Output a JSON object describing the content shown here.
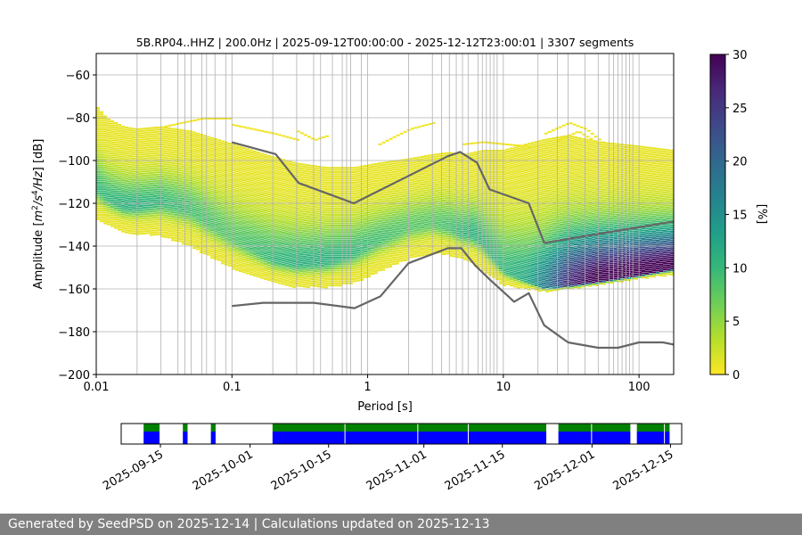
{
  "chart_data": [
    {
      "type": "heatmap",
      "title": "5B.RP04..HHZ | 200.0Hz | 2025-09-12T00:00:00 - 2025-12-12T23:00:01 | 3307 segments",
      "xlabel": "Period [s]",
      "ylabel_parts": [
        "Amplitude [",
        "m",
        "2",
        "/s",
        "4",
        "/Hz",
        "] [dB]"
      ],
      "x_scale": "log",
      "xlim": [
        0.01,
        180
      ],
      "ylim": [
        -200,
        -50
      ],
      "x_ticks": [
        {
          "v": 0.01,
          "label": "0.01"
        },
        {
          "v": 0.1,
          "label": "0.1"
        },
        {
          "v": 1,
          "label": "1"
        },
        {
          "v": 10,
          "label": "10"
        },
        {
          "v": 100,
          "label": "100"
        }
      ],
      "y_ticks": [
        {
          "v": -60,
          "label": "−60"
        },
        {
          "v": -80,
          "label": "−80"
        },
        {
          "v": -100,
          "label": "−100"
        },
        {
          "v": -120,
          "label": "−120"
        },
        {
          "v": -140,
          "label": "−140"
        },
        {
          "v": -160,
          "label": "−160"
        },
        {
          "v": -180,
          "label": "−180"
        },
        {
          "v": -200,
          "label": "−200"
        }
      ],
      "grid_periods": [
        0.02,
        0.03,
        0.04,
        0.045,
        0.05,
        0.06,
        0.065,
        0.075,
        0.09,
        0.1,
        0.2,
        0.3,
        0.4,
        0.45,
        0.55,
        0.65,
        0.7,
        0.75,
        0.9,
        1,
        2,
        3,
        3.5,
        4,
        4.5,
        5,
        5.5,
        6.5,
        7,
        7.5,
        8,
        8.5,
        9,
        10,
        18,
        25,
        30,
        40,
        50,
        60,
        65,
        70,
        75,
        80,
        85,
        90,
        100
      ],
      "colorbar": {
        "label": "[%]",
        "min": 0,
        "max": 30,
        "ticks": [
          {
            "v": 0,
            "label": "0"
          },
          {
            "v": 5,
            "label": "5"
          },
          {
            "v": 10,
            "label": "10"
          },
          {
            "v": 15,
            "label": "15"
          },
          {
            "v": 20,
            "label": "20"
          },
          {
            "v": 25,
            "label": "25"
          },
          {
            "v": 30,
            "label": "30"
          }
        ]
      },
      "density": {
        "periods": [
          0.01,
          0.012,
          0.016,
          0.02,
          0.03,
          0.05,
          0.1,
          0.2,
          0.3,
          0.5,
          0.8,
          1.2,
          2,
          3,
          4,
          5,
          6,
          7,
          10,
          15,
          20,
          30,
          50,
          100,
          180
        ],
        "mode_db": [
          -112,
          -117,
          -121,
          -121,
          -119,
          -123,
          -136,
          -146,
          -148,
          -147,
          -143,
          -137,
          -131,
          -129,
          -131,
          -134,
          -134,
          -138,
          -151,
          -156,
          -159,
          -158,
          -156,
          -153,
          -150
        ],
        "mode_pct": [
          9,
          9,
          10,
          10,
          9,
          8,
          7,
          9,
          10,
          10,
          9,
          8,
          7,
          7,
          8,
          9,
          10,
          9,
          9,
          11,
          16,
          25,
          30,
          30,
          30
        ],
        "upper_db": [
          -74,
          -80,
          -84,
          -85,
          -84,
          -86,
          -92,
          -98,
          -101,
          -103,
          -103,
          -101,
          -99,
          -97,
          -96,
          -97,
          -96,
          -95,
          -95,
          -92,
          -90,
          -88,
          -91,
          -93,
          -95
        ],
        "lower_db": [
          -127,
          -130,
          -133,
          -134,
          -135,
          -140,
          -150,
          -157,
          -159,
          -159,
          -157,
          -152,
          -146,
          -143,
          -144,
          -146,
          -148,
          -151,
          -158,
          -160,
          -161,
          -160,
          -158,
          -155,
          -153
        ],
        "outliers": [
          {
            "periods": [
              0.03,
              0.05,
              0.06,
              0.1
            ],
            "db": [
              -84,
              -81,
              -80,
              -80
            ]
          },
          {
            "periods": [
              0.1,
              0.2,
              0.3
            ],
            "db": [
              -83,
              -87,
              -90
            ]
          },
          {
            "periods": [
              0.3,
              0.4,
              0.5
            ],
            "db": [
              -86,
              -90,
              -88
            ]
          },
          {
            "periods": [
              1.2,
              2,
              3
            ],
            "db": [
              -92,
              -85,
              -82
            ]
          },
          {
            "periods": [
              5,
              7,
              10,
              15
            ],
            "db": [
              -92,
              -91,
              -92,
              -93
            ]
          },
          {
            "periods": [
              20,
              30,
              40,
              60
            ],
            "db": [
              -87,
              -82,
              -85,
              -94
            ]
          },
          {
            "periods": [
              25,
              35,
              50
            ],
            "db": [
              -90,
              -86,
              -92
            ]
          }
        ]
      },
      "series": [
        {
          "periods": [
            0.1,
            0.21,
            0.31,
            0.79,
            3.9,
            4.8,
            6.4,
            7.9,
            15.4,
            20,
            180
          ],
          "db": [
            -91.5,
            -97,
            -110.5,
            -120,
            -98,
            -96,
            -101,
            -113.5,
            -120,
            -138.5,
            -128.5
          ]
        },
        {
          "periods": [
            0.1,
            0.17,
            0.4,
            0.8,
            1.24,
            2,
            3.9,
            4.9,
            6.2,
            7.9,
            10.9,
            12,
            15.4,
            20,
            30,
            50,
            70,
            100,
            150,
            180
          ],
          "db": [
            -168,
            -166.5,
            -166.5,
            -169,
            -163.5,
            -148,
            -141,
            -141,
            -149,
            -155.5,
            -163.5,
            -166,
            -162,
            -177,
            -185,
            -187.5,
            -187.5,
            -185,
            -185,
            -186
          ]
        }
      ]
    },
    {
      "type": "bar",
      "x_ticks": [
        {
          "date": "2025-09-15",
          "label": "2025-09-15"
        },
        {
          "date": "2025-10-01",
          "label": "2025-10-01"
        },
        {
          "date": "2025-10-15",
          "label": "2025-10-15"
        },
        {
          "date": "2025-11-01",
          "label": "2025-11-01"
        },
        {
          "date": "2025-11-15",
          "label": "2025-11-15"
        },
        {
          "date": "2025-12-01",
          "label": "2025-12-01"
        },
        {
          "date": "2025-12-15",
          "label": "2025-12-15"
        }
      ],
      "xlim": [
        "2025-09-08",
        "2025-12-17"
      ],
      "colors": {
        "top": "#008000",
        "bottom": "#0000ff"
      },
      "segments": [
        {
          "start": "2025-09-12",
          "end": "2025-09-15"
        },
        {
          "start": "2025-09-19",
          "end": "2025-09-20"
        },
        {
          "start": "2025-09-24",
          "end": "2025-09-25"
        },
        {
          "start": "2025-10-05",
          "end": "2025-10-18"
        },
        {
          "start": "2025-10-18",
          "end": "2025-10-31"
        },
        {
          "start": "2025-10-31",
          "end": "2025-11-09"
        },
        {
          "start": "2025-11-09",
          "end": "2025-11-23"
        },
        {
          "start": "2025-11-25",
          "end": "2025-12-01"
        },
        {
          "start": "2025-12-01",
          "end": "2025-12-08"
        },
        {
          "start": "2025-12-09",
          "end": "2025-12-14"
        },
        {
          "start": "2025-12-14",
          "end": "2025-12-15"
        }
      ]
    }
  ],
  "colormap": [
    "#fde725",
    "#b5de2b",
    "#6ece58",
    "#35b779",
    "#1f9e89",
    "#26828e",
    "#31688e",
    "#3e4989",
    "#482878",
    "#440154"
  ],
  "footer": {
    "text": "Generated by SeedPSD on 2025-12-14 | Calculations updated on 2025-12-13"
  }
}
